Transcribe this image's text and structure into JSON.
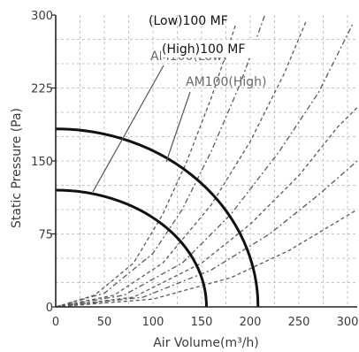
{
  "chart_data": {
    "type": "line",
    "xlabel": "Air Volume(m³/h)",
    "ylabel": "Static Pressure (Pa)",
    "xlim": [
      0,
      310
    ],
    "ylim": [
      0,
      300
    ],
    "x_ticks": [
      0,
      50,
      100,
      150,
      200,
      250,
      300
    ],
    "y_ticks": [
      0,
      75,
      150,
      225,
      300
    ],
    "grid": true,
    "annotations": [
      {
        "id": "low-mf",
        "text": "(Low)100 MF"
      },
      {
        "id": "high-mf",
        "text": "(High)100 MF"
      },
      {
        "id": "am-low",
        "text": "AM100(Low)"
      },
      {
        "id": "am-high",
        "text": "AM100(High)"
      }
    ],
    "fan_curves": [
      {
        "id": "low",
        "x_max": 155,
        "y_max": 120
      },
      {
        "id": "high",
        "x_max": 208,
        "y_max": 183
      }
    ],
    "system_curves": [
      {
        "id": "sys-1",
        "dash": "4,3",
        "points": [
          [
            0,
            0
          ],
          [
            40,
            12
          ],
          [
            80,
            45
          ],
          [
            110,
            95
          ],
          [
            135,
            150
          ],
          [
            160,
            215
          ],
          [
            185,
            290
          ]
        ]
      },
      {
        "id": "sys-2",
        "dash": "6,3,2,3",
        "points": [
          [
            0,
            0
          ],
          [
            50,
            14
          ],
          [
            100,
            55
          ],
          [
            130,
            100
          ],
          [
            160,
            160
          ],
          [
            190,
            230
          ],
          [
            215,
            300
          ]
        ]
      },
      {
        "id": "sys-3",
        "dash": "4,3",
        "points": [
          [
            0,
            0
          ],
          [
            60,
            12
          ],
          [
            110,
            45
          ],
          [
            160,
            105
          ],
          [
            200,
            170
          ],
          [
            235,
            240
          ],
          [
            258,
            295
          ]
        ]
      },
      {
        "id": "sys-4",
        "dash": "6,3,2,3",
        "points": [
          [
            0,
            0
          ],
          [
            70,
            12
          ],
          [
            130,
            45
          ],
          [
            180,
            95
          ],
          [
            230,
            160
          ],
          [
            270,
            220
          ],
          [
            305,
            290
          ]
        ]
      },
      {
        "id": "sys-5",
        "dash": "4,3",
        "points": [
          [
            0,
            0
          ],
          [
            80,
            10
          ],
          [
            150,
            45
          ],
          [
            200,
            85
          ],
          [
            250,
            135
          ],
          [
            290,
            185
          ],
          [
            310,
            205
          ]
        ]
      },
      {
        "id": "sys-6",
        "dash": "6,3,2,3",
        "points": [
          [
            0,
            0
          ],
          [
            90,
            10
          ],
          [
            160,
            38
          ],
          [
            220,
            75
          ],
          [
            270,
            115
          ],
          [
            310,
            150
          ]
        ]
      },
      {
        "id": "sys-7",
        "dash": "4,3",
        "points": [
          [
            0,
            0
          ],
          [
            100,
            8
          ],
          [
            180,
            30
          ],
          [
            240,
            58
          ],
          [
            290,
            88
          ],
          [
            310,
            100
          ]
        ]
      }
    ]
  }
}
